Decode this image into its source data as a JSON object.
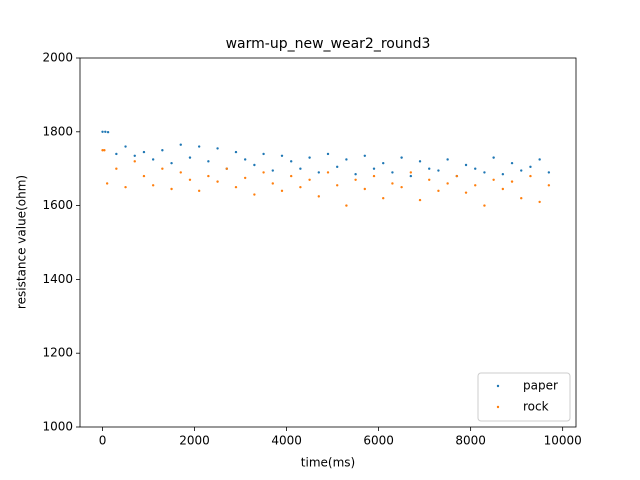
{
  "chart_data": {
    "type": "scatter",
    "title": "warm-up_new_wear2_round3",
    "xlabel": "time(ms)",
    "ylabel": "resistance value(ohm)",
    "xlim": [
      -490,
      10290
    ],
    "xticks": [
      0,
      2000,
      4000,
      6000,
      8000,
      10000
    ],
    "ylim": [
      1000,
      2000
    ],
    "yticks": [
      1000,
      1200,
      1400,
      1600,
      1800,
      2000
    ],
    "legend": "lower right",
    "series": [
      {
        "name": "paper",
        "color": "#1f77b4",
        "x": [
          0,
          60,
          120,
          300,
          500,
          700,
          900,
          1100,
          1300,
          1500,
          1700,
          1900,
          2100,
          2300,
          2500,
          2700,
          2900,
          3100,
          3300,
          3500,
          3700,
          3900,
          4100,
          4300,
          4500,
          4700,
          4900,
          5100,
          5300,
          5500,
          5700,
          5900,
          6100,
          6300,
          6500,
          6700,
          6900,
          7100,
          7300,
          7500,
          7700,
          7900,
          8100,
          8300,
          8500,
          8700,
          8900,
          9100,
          9300,
          9500,
          9700
        ],
        "values": [
          1800,
          1800,
          1799,
          1740,
          1760,
          1735,
          1745,
          1725,
          1750,
          1715,
          1765,
          1730,
          1760,
          1720,
          1755,
          1700,
          1745,
          1725,
          1710,
          1740,
          1695,
          1735,
          1720,
          1700,
          1730,
          1690,
          1740,
          1705,
          1725,
          1685,
          1735,
          1700,
          1715,
          1690,
          1730,
          1680,
          1720,
          1700,
          1695,
          1725,
          1680,
          1710,
          1700,
          1690,
          1730,
          1685,
          1715,
          1695,
          1705,
          1725,
          1690
        ]
      },
      {
        "name": "rock",
        "color": "#ff7f0e",
        "x": [
          0,
          40,
          100,
          300,
          500,
          700,
          900,
          1100,
          1300,
          1500,
          1700,
          1900,
          2100,
          2300,
          2500,
          2700,
          2900,
          3100,
          3300,
          3500,
          3700,
          3900,
          4100,
          4300,
          4500,
          4700,
          4900,
          5100,
          5300,
          5500,
          5700,
          5900,
          6100,
          6300,
          6500,
          6700,
          6900,
          7100,
          7300,
          7500,
          7700,
          7900,
          8100,
          8300,
          8500,
          8700,
          8900,
          9100,
          9300,
          9500,
          9700
        ],
        "values": [
          1750,
          1750,
          1660,
          1700,
          1650,
          1720,
          1680,
          1655,
          1700,
          1645,
          1690,
          1670,
          1640,
          1680,
          1665,
          1700,
          1650,
          1675,
          1630,
          1690,
          1660,
          1640,
          1680,
          1650,
          1670,
          1625,
          1690,
          1655,
          1600,
          1670,
          1645,
          1680,
          1620,
          1660,
          1650,
          1690,
          1615,
          1670,
          1640,
          1660,
          1680,
          1635,
          1655,
          1600,
          1670,
          1645,
          1665,
          1620,
          1680,
          1610,
          1655
        ]
      }
    ]
  }
}
